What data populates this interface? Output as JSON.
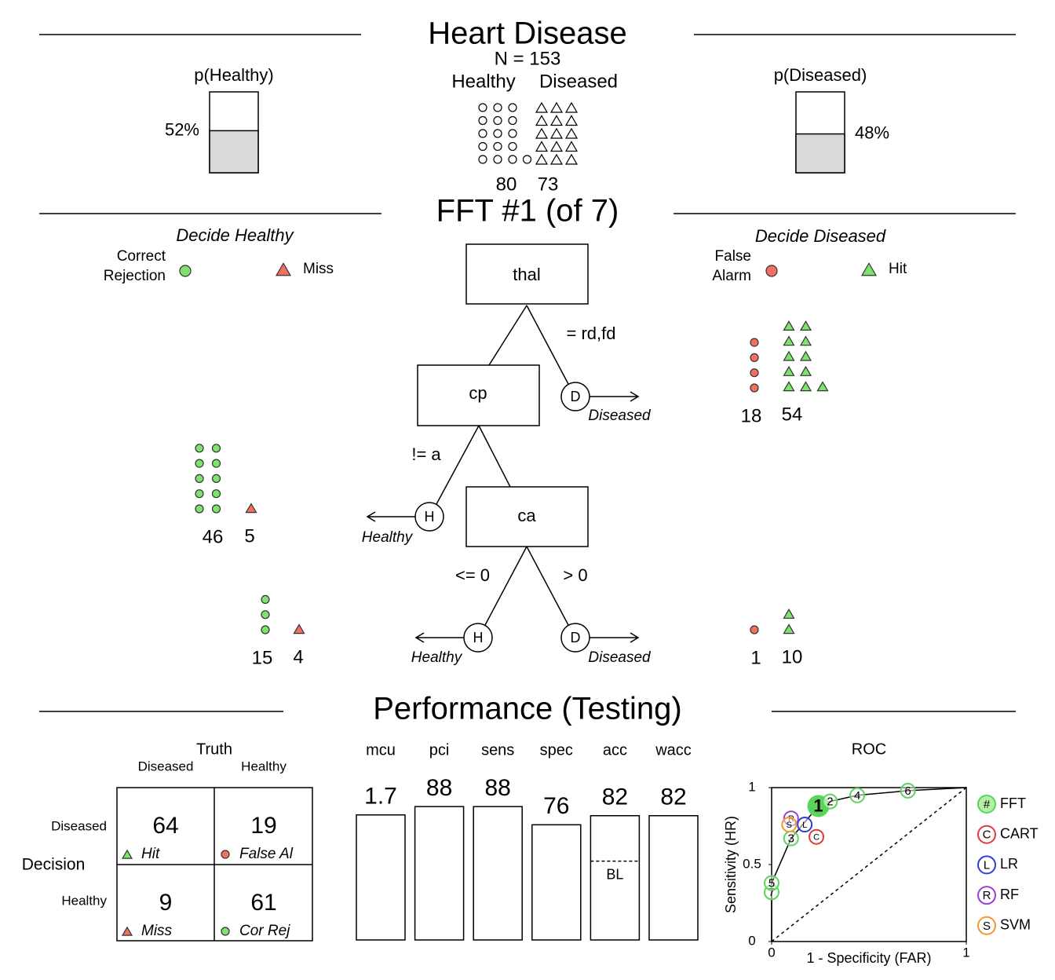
{
  "header": {
    "title": "Heart Disease",
    "n_label": "N = 153",
    "class_labels": [
      "Healthy",
      "Diseased"
    ],
    "class_counts": [
      80,
      73
    ],
    "p_healthy": {
      "label": "p(Healthy)",
      "value": 52,
      "value_label": "52%"
    },
    "p_diseased": {
      "label": "p(Diseased)",
      "value": 48,
      "value_label": "48%"
    }
  },
  "tree": {
    "title": "FFT #1 (of 7)",
    "decide_healthy": "Decide Healthy",
    "decide_diseased": "Decide Diseased",
    "legend": {
      "correct_rejection": [
        "Correct",
        "Rejection"
      ],
      "miss": "Miss",
      "false_alarm": [
        "False",
        "Alarm"
      ],
      "hit": "Hit"
    },
    "nodes": [
      "thal",
      "cp",
      "ca"
    ],
    "edges": [
      "= rd,fd",
      "!= a",
      "<= 0",
      "> 0"
    ],
    "exits": [
      {
        "symbol": "D",
        "label": "Diseased"
      },
      {
        "symbol": "H",
        "label": "Healthy"
      },
      {
        "symbol": "H",
        "label": "Healthy"
      },
      {
        "symbol": "D",
        "label": "Diseased"
      }
    ],
    "level_counts": [
      {
        "false_alarm": 18,
        "hit": 54
      },
      {
        "correct_rejection": 46,
        "miss": 5
      },
      {
        "correct_rejection": 15,
        "miss": 4,
        "false_alarm": 1,
        "hit": 10
      }
    ]
  },
  "performance": {
    "title": "Performance (Testing)",
    "confusion": {
      "truth_label": "Truth",
      "decision_label": "Decision",
      "columns": [
        "Diseased",
        "Healthy"
      ],
      "rows": [
        "Diseased",
        "Healthy"
      ],
      "cells": [
        [
          64,
          19
        ],
        [
          9,
          61
        ]
      ],
      "cell_labels": [
        [
          "Hit",
          "False Al"
        ],
        [
          "Miss",
          "Cor Rej"
        ]
      ]
    },
    "metrics": {
      "type": "bar",
      "categories": [
        "mcu",
        "pci",
        "sens",
        "spec",
        "acc",
        "wacc"
      ],
      "values": [
        1.7,
        88,
        88,
        76,
        82,
        82
      ],
      "ylims": [
        [
          5,
          1
        ],
        [
          0,
          100
        ],
        [
          0,
          100
        ],
        [
          0,
          100
        ],
        [
          0,
          100
        ],
        [
          0,
          100
        ]
      ],
      "baseline": {
        "label": "BL",
        "value": 52
      }
    },
    "roc": {
      "type": "scatter",
      "title": "ROC",
      "xlabel": "1 - Specificity (FAR)",
      "ylabel": "Sensitivity (HR)",
      "xlim": [
        0,
        1
      ],
      "ylim": [
        0,
        1
      ],
      "xticks": [
        0,
        1
      ],
      "yticks": [
        0,
        0.5,
        1
      ],
      "highlight": 3,
      "series": [
        {
          "name": "FFT",
          "symbol": "#",
          "color": "#5ad45a",
          "labels": [
            "7",
            "5",
            "3",
            "1",
            "2",
            "4",
            "6"
          ],
          "x": [
            0,
            0,
            0.1,
            0.24,
            0.3,
            0.44,
            0.7
          ],
          "y": [
            0.32,
            0.38,
            0.67,
            0.88,
            0.91,
            0.95,
            0.98
          ]
        },
        {
          "name": "CART",
          "symbol": "C",
          "color": "#e0393e",
          "labels": [
            "C"
          ],
          "x": [
            0.23
          ],
          "y": [
            0.68
          ]
        },
        {
          "name": "LR",
          "symbol": "L",
          "color": "#2f3fd8",
          "labels": [
            "L"
          ],
          "x": [
            0.17
          ],
          "y": [
            0.76
          ]
        },
        {
          "name": "RF",
          "symbol": "R",
          "color": "#9b3fd0",
          "labels": [
            "R"
          ],
          "x": [
            0.1
          ],
          "y": [
            0.8
          ]
        },
        {
          "name": "SVM",
          "symbol": "S",
          "color": "#f09a2a",
          "labels": [
            "S"
          ],
          "x": [
            0.09
          ],
          "y": [
            0.76
          ]
        }
      ]
    }
  }
}
